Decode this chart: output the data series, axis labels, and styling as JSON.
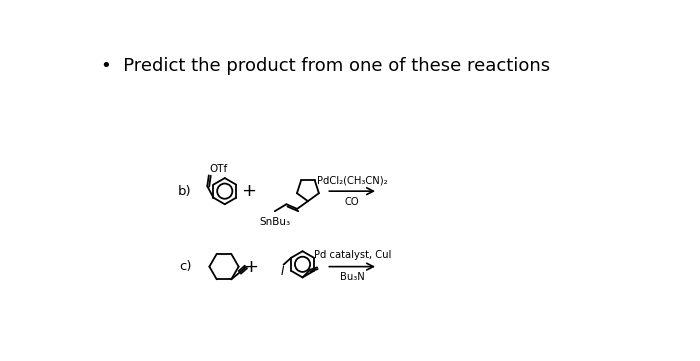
{
  "title": "Predict the product from one of these reactions",
  "bullet": "•",
  "bg_color": "#ffffff",
  "text_color": "#000000",
  "title_fontsize": 13,
  "reaction_b_reagents_line1": "PdCl₂(CH₃CN)₂",
  "reaction_b_reagents_line2": "CO",
  "reaction_b_label": "b)",
  "reaction_b_snbu": "SnBu₃",
  "reaction_b_otf": "OTf",
  "reaction_c_reagents_line1": "Pd catalyst, CuI",
  "reaction_c_reagents_line2": "Bu₃N",
  "reaction_c_label": "c)"
}
